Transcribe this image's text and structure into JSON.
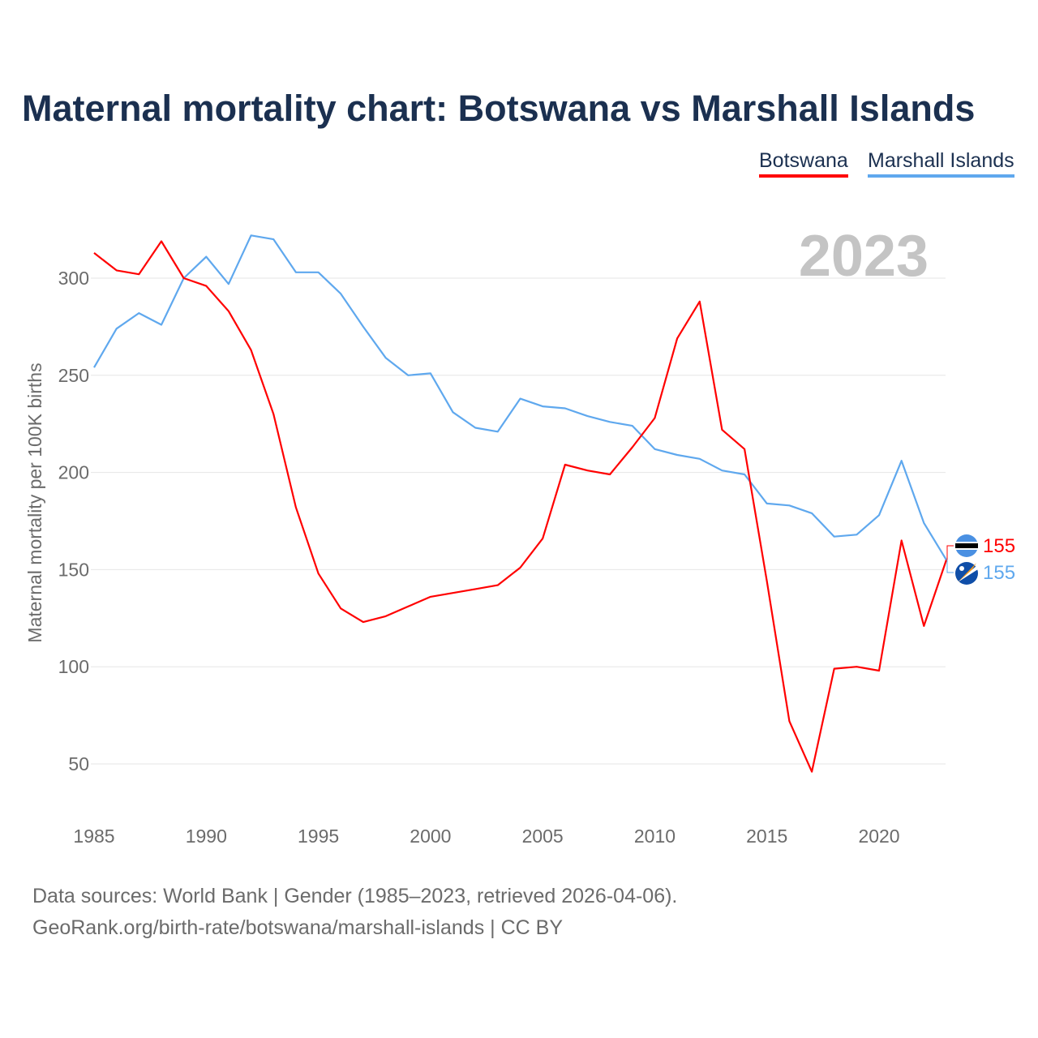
{
  "title": "Maternal mortality chart: Botswana vs Marshall Islands",
  "footer": {
    "line1": "Data sources: World Bank | Gender (1985–2023, retrieved 2026-04-06).",
    "line2": "GeoRank.org/birth-rate/botswana/marshall-islands | CC BY"
  },
  "chart_data": {
    "type": "line",
    "title": "Maternal mortality chart: Botswana vs Marshall Islands",
    "xlabel": "",
    "ylabel": "Maternal mortality per 100K births",
    "year_label": "2023",
    "x": [
      1985,
      1986,
      1987,
      1988,
      1989,
      1990,
      1991,
      1992,
      1993,
      1994,
      1995,
      1996,
      1997,
      1998,
      1999,
      2000,
      2001,
      2002,
      2003,
      2004,
      2005,
      2006,
      2007,
      2008,
      2009,
      2010,
      2011,
      2012,
      2013,
      2014,
      2015,
      2016,
      2017,
      2018,
      2019,
      2020,
      2021,
      2022,
      2023
    ],
    "xlim": [
      1985,
      2023
    ],
    "ylim": [
      30,
      330
    ],
    "xticks": [
      1985,
      1990,
      1995,
      2000,
      2005,
      2010,
      2015,
      2020
    ],
    "yticks": [
      50,
      100,
      150,
      200,
      250,
      300
    ],
    "grid": true,
    "legend_position": "top-right",
    "series": [
      {
        "name": "Botswana",
        "color": "#ff0000",
        "end_label": "155",
        "values": [
          313,
          304,
          302,
          319,
          300,
          296,
          283,
          263,
          230,
          182,
          148,
          130,
          123,
          126,
          131,
          136,
          138,
          140,
          142,
          151,
          166,
          204,
          201,
          199,
          213,
          228,
          269,
          288,
          222,
          212,
          144,
          72,
          46,
          99,
          100,
          98,
          165,
          121,
          155
        ]
      },
      {
        "name": "Marshall Islands",
        "color": "#5fa8ee",
        "end_label": "155",
        "values": [
          254,
          274,
          282,
          276,
          300,
          311,
          297,
          322,
          320,
          303,
          303,
          292,
          275,
          259,
          250,
          251,
          231,
          223,
          221,
          238,
          234,
          233,
          229,
          226,
          224,
          212,
          209,
          207,
          201,
          199,
          184,
          183,
          179,
          167,
          168,
          178,
          206,
          174,
          155
        ]
      }
    ]
  }
}
